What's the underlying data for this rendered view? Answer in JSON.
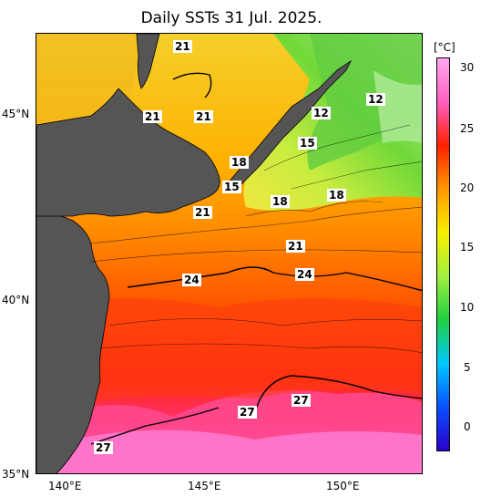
{
  "title": "Daily SSTs 31 Jul. 2025.",
  "axes": {
    "lat_labels": [
      "45°N",
      "40°N",
      "35°N"
    ],
    "lon_labels": [
      "140°E",
      "145°E",
      "150°E"
    ]
  },
  "colorbar": {
    "unit": "[°C]",
    "ticks": [
      "30",
      "25",
      "20",
      "15",
      "10",
      "5",
      "0"
    ],
    "range": [
      -2,
      32
    ],
    "colors": [
      "#2a00c8",
      "#0a50ff",
      "#00c8ff",
      "#20d040",
      "#a0f040",
      "#f8f000",
      "#ff9800",
      "#ff2000",
      "#ff60c0",
      "#ffa8f0"
    ]
  },
  "contour_labels": [
    {
      "id": "c21a",
      "text": "21"
    },
    {
      "id": "c21b",
      "text": "21"
    },
    {
      "id": "c21c",
      "text": "21"
    },
    {
      "id": "c12a",
      "text": "12"
    },
    {
      "id": "c12b",
      "text": "12"
    },
    {
      "id": "c15a",
      "text": "15"
    },
    {
      "id": "c18a",
      "text": "18"
    },
    {
      "id": "c15b",
      "text": "15"
    },
    {
      "id": "c18b",
      "text": "18"
    },
    {
      "id": "c18c",
      "text": "18"
    },
    {
      "id": "c21d",
      "text": "21"
    },
    {
      "id": "c21e",
      "text": "21"
    },
    {
      "id": "c24a",
      "text": "24"
    },
    {
      "id": "c24b",
      "text": "24"
    },
    {
      "id": "c27a",
      "text": "27"
    },
    {
      "id": "c27b",
      "text": "27"
    },
    {
      "id": "c27c",
      "text": "27"
    }
  ]
}
